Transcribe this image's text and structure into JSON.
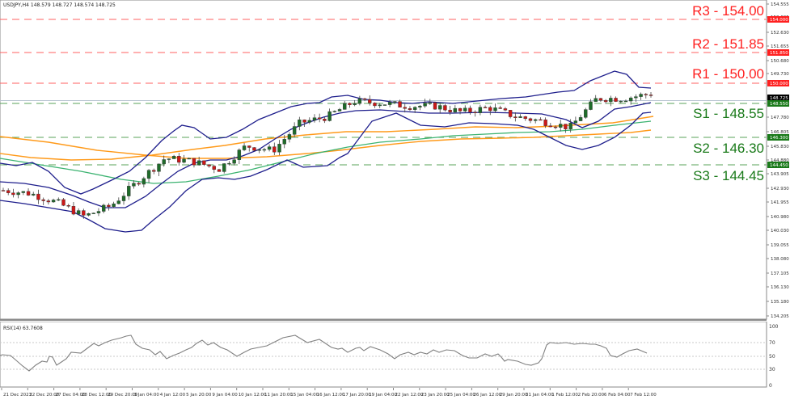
{
  "header": {
    "symbol": "USDJPY,H4",
    "ohlc": "148.579 148.727 148.574 148.725",
    "title_full": "USDJPY,H4  148.579 148.727 148.574 148.725"
  },
  "levels": {
    "r3": {
      "label": "R3 - 154.00",
      "price": 154.0,
      "color": "#ff2020"
    },
    "r2": {
      "label": "R2 - 151.85",
      "price": 151.85,
      "color": "#ff2020"
    },
    "r1": {
      "label": "R1 - 150.00",
      "price": 150.0,
      "color": "#ff2020"
    },
    "s1": {
      "label": "S1 - 148.55",
      "price": 148.55,
      "color": "#1a7a1a"
    },
    "s2": {
      "label": "S2 - 146.30",
      "price": 146.3,
      "color": "#1a7a1a"
    },
    "s3": {
      "label": "S3 - 144.45",
      "price": 144.45,
      "color": "#1a7a1a"
    }
  },
  "price_axis": {
    "ticks": [
      "154.555",
      "153.605",
      "152.630",
      "151.655",
      "150.680",
      "149.730",
      "147.780",
      "146.805",
      "145.830",
      "144.880",
      "143.905",
      "142.930",
      "141.955",
      "140.980",
      "140.030",
      "139.055",
      "138.080",
      "137.105",
      "136.130",
      "135.180",
      "134.205"
    ],
    "tags": [
      {
        "text": "154.000",
        "bg": "#ff2020"
      },
      {
        "text": "151.850",
        "bg": "#ff2020"
      },
      {
        "text": "150.000",
        "bg": "#ff2020"
      },
      {
        "text": "148.725",
        "bg": "#000000"
      },
      {
        "text": "148.550",
        "bg": "#1a7a1a"
      },
      {
        "text": "146.300",
        "bg": "#1a7a1a"
      },
      {
        "text": "144.450",
        "bg": "#1a7a1a"
      }
    ]
  },
  "rsi": {
    "title": "RSI(14) 63.7608",
    "ticks": [
      "100",
      "70",
      "50",
      "30",
      "0"
    ]
  },
  "time_axis": {
    "labels": [
      "21 Dec 2023",
      "22 Dec 20:00",
      "27 Dec 04:00",
      "28 Dec 12:00",
      "29 Dec 20:00",
      "3 Jan 04:00",
      "4 Jan 12:00",
      "5 Jan 20:00",
      "9 Jan 04:00",
      "10 Jan 12:00",
      "11 Jan 20:00",
      "15 Jan 04:00",
      "16 Jan 12:00",
      "17 Jan 20:00",
      "19 Jan 04:00",
      "22 Jan 12:00",
      "23 Jan 20:00",
      "25 Jan 04:00",
      "26 Jan 12:00",
      "29 Jan 20:00",
      "31 Jan 04:00",
      "1 Feb 12:00",
      "2 Feb 20:00",
      "6 Feb 04:00",
      "7 Feb 12:00"
    ]
  },
  "colors": {
    "bull": "#1f6b2a",
    "bear": "#cc1818",
    "bollinger": "#1e1e8c",
    "ma_green": "#3cb371",
    "ma_orange": "#ff9a1a",
    "resistance": "#ff5050",
    "support": "#4c9a4c",
    "rsi_line": "#808080"
  },
  "chart_data": [
    {
      "type": "candlestick",
      "title": "USDJPY,H4",
      "xlabel": "",
      "ylabel": "Price",
      "ylim": [
        134.205,
        154.555
      ],
      "x": [
        "21 Dec 2023",
        "22 Dec 20:00",
        "27 Dec 04:00",
        "28 Dec 12:00",
        "29 Dec 20:00",
        "3 Jan 04:00",
        "4 Jan 12:00",
        "5 Jan 20:00",
        "9 Jan 04:00",
        "10 Jan 12:00",
        "11 Jan 20:00",
        "15 Jan 04:00",
        "16 Jan 12:00",
        "17 Jan 20:00",
        "19 Jan 04:00",
        "22 Jan 12:00",
        "23 Jan 20:00",
        "25 Jan 04:00",
        "26 Jan 12:00",
        "29 Jan 20:00",
        "31 Jan 04:00",
        "1 Feb 12:00",
        "2 Feb 20:00",
        "6 Feb 04:00",
        "7 Feb 12:00"
      ],
      "series": [
        {
          "name": "Close (approx)",
          "values": [
            142.4,
            142.2,
            141.6,
            140.7,
            141.4,
            143.0,
            144.5,
            144.3,
            143.8,
            145.3,
            145.0,
            146.8,
            147.2,
            148.2,
            148.1,
            147.9,
            147.9,
            147.5,
            147.8,
            147.2,
            146.9,
            146.5,
            148.4,
            148.4,
            148.7
          ]
        },
        {
          "name": "Bollinger Upper (approx)",
          "values": [
            143.6,
            143.2,
            142.6,
            142.2,
            142.6,
            144.4,
            145.4,
            145.6,
            145.2,
            146.0,
            146.5,
            148.0,
            148.8,
            149.0,
            148.8,
            148.7,
            148.6,
            148.4,
            148.5,
            148.3,
            148.2,
            148.4,
            149.3,
            149.5,
            149.0
          ]
        },
        {
          "name": "Bollinger Lower (approx)",
          "values": [
            141.7,
            141.3,
            140.6,
            140.0,
            140.3,
            141.0,
            142.4,
            143.3,
            143.5,
            143.9,
            144.0,
            144.2,
            145.8,
            147.1,
            147.3,
            147.2,
            147.3,
            147.0,
            146.9,
            146.6,
            146.1,
            145.6,
            145.0,
            145.9,
            147.3
          ]
        },
        {
          "name": "MA green (approx)",
          "values": [
            145.2,
            144.9,
            144.6,
            144.3,
            144.0,
            143.7,
            143.6,
            143.7,
            143.9,
            144.1,
            144.4,
            144.9,
            145.4,
            145.9,
            146.2,
            146.4,
            146.6,
            146.7,
            146.8,
            146.9,
            146.9,
            146.9,
            147.2,
            147.4,
            147.6
          ]
        },
        {
          "name": "MA orange (approx)",
          "values": [
            146.2,
            146.0,
            145.8,
            145.6,
            145.4,
            145.2,
            145.1,
            145.1,
            145.1,
            145.2,
            145.3,
            145.5,
            145.7,
            145.9,
            146.0,
            146.1,
            146.2,
            146.3,
            146.3,
            146.4,
            146.4,
            146.5,
            146.6,
            146.7,
            146.8
          ]
        }
      ],
      "annotations": [
        "R3 - 154.00",
        "R2 - 151.85",
        "R1 - 150.00",
        "S1 - 148.55",
        "S2 - 146.30",
        "S3 - 144.45"
      ],
      "grid": false,
      "legend": "none"
    },
    {
      "type": "line",
      "title": "RSI(14) 63.7608",
      "ylim": [
        0,
        100
      ],
      "yticks": [
        0,
        30,
        50,
        70,
        100
      ],
      "x": [
        "21 Dec 2023",
        "22 Dec 20:00",
        "27 Dec 04:00",
        "28 Dec 12:00",
        "29 Dec 20:00",
        "3 Jan 04:00",
        "4 Jan 12:00",
        "5 Jan 20:00",
        "9 Jan 04:00",
        "10 Jan 12:00",
        "11 Jan 20:00",
        "15 Jan 04:00",
        "16 Jan 12:00",
        "17 Jan 20:00",
        "19 Jan 04:00",
        "22 Jan 12:00",
        "23 Jan 20:00",
        "25 Jan 04:00",
        "26 Jan 12:00",
        "29 Jan 20:00",
        "31 Jan 04:00",
        "1 Feb 12:00",
        "2 Feb 20:00",
        "6 Feb 04:00",
        "7 Feb 12:00"
      ],
      "series": [
        {
          "name": "RSI(14)",
          "values": [
            44,
            45,
            40,
            30,
            44,
            48,
            58,
            66,
            72,
            58,
            54,
            62,
            75,
            82,
            67,
            58,
            52,
            55,
            54,
            45,
            33,
            38,
            70,
            52,
            63.76
          ]
        }
      ]
    }
  ]
}
